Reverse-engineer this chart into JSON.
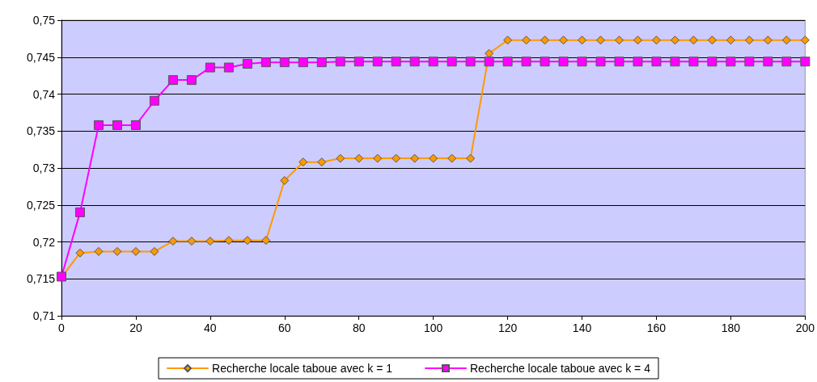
{
  "chart_data": {
    "type": "line",
    "x": [
      0,
      5,
      10,
      15,
      20,
      25,
      30,
      35,
      40,
      45,
      50,
      55,
      60,
      65,
      70,
      75,
      80,
      85,
      90,
      95,
      100,
      105,
      110,
      115,
      120,
      125,
      130,
      135,
      140,
      145,
      150,
      155,
      160,
      165,
      170,
      175,
      180,
      185,
      190,
      195,
      200
    ],
    "series": [
      {
        "name": "Recherche locale taboue avec k = 1",
        "color": "#ff9900",
        "marker": "diamond",
        "values": [
          0.7152,
          0.7185,
          0.7187,
          0.7187,
          0.7187,
          0.7187,
          0.7201,
          0.7201,
          0.7201,
          0.7202,
          0.7202,
          0.7202,
          0.7283,
          0.7308,
          0.7308,
          0.7313,
          0.7313,
          0.7313,
          0.7313,
          0.7313,
          0.7313,
          0.7313,
          0.7313,
          0.7455,
          0.7473,
          0.7473,
          0.7473,
          0.7473,
          0.7473,
          0.7473,
          0.7473,
          0.7473,
          0.7473,
          0.7473,
          0.7473,
          0.7473,
          0.7473,
          0.7473,
          0.7473,
          0.7473,
          0.7473
        ]
      },
      {
        "name": "Recherche locale taboue avec k = 4",
        "color": "#ff00ff",
        "marker": "square",
        "values": [
          0.7153,
          0.724,
          0.7358,
          0.7358,
          0.7358,
          0.7391,
          0.7419,
          0.7419,
          0.7436,
          0.7436,
          0.7441,
          0.7443,
          0.7443,
          0.7443,
          0.7443,
          0.7444,
          0.7444,
          0.7444,
          0.7444,
          0.7444,
          0.7444,
          0.7444,
          0.7444,
          0.7444,
          0.7444,
          0.7444,
          0.7444,
          0.7444,
          0.7444,
          0.7444,
          0.7444,
          0.7444,
          0.7444,
          0.7444,
          0.7444,
          0.7444,
          0.7444,
          0.7444,
          0.7444,
          0.7444,
          0.7444
        ]
      }
    ],
    "xlim": [
      0,
      200
    ],
    "xticks": [
      0,
      20,
      40,
      60,
      80,
      100,
      120,
      140,
      160,
      180,
      200
    ],
    "ylim": [
      0.71,
      0.75
    ],
    "yticks": [
      {
        "value": 0.71,
        "label": "0,71"
      },
      {
        "value": 0.715,
        "label": "0,715"
      },
      {
        "value": 0.72,
        "label": "0,72"
      },
      {
        "value": 0.725,
        "label": "0,725"
      },
      {
        "value": 0.73,
        "label": "0,73"
      },
      {
        "value": 0.735,
        "label": "0,735"
      },
      {
        "value": 0.74,
        "label": "0,74"
      },
      {
        "value": 0.745,
        "label": "0,745"
      },
      {
        "value": 0.75,
        "label": "0,75"
      }
    ],
    "grid": "y",
    "legend": "bottom",
    "line_style": "solid"
  }
}
